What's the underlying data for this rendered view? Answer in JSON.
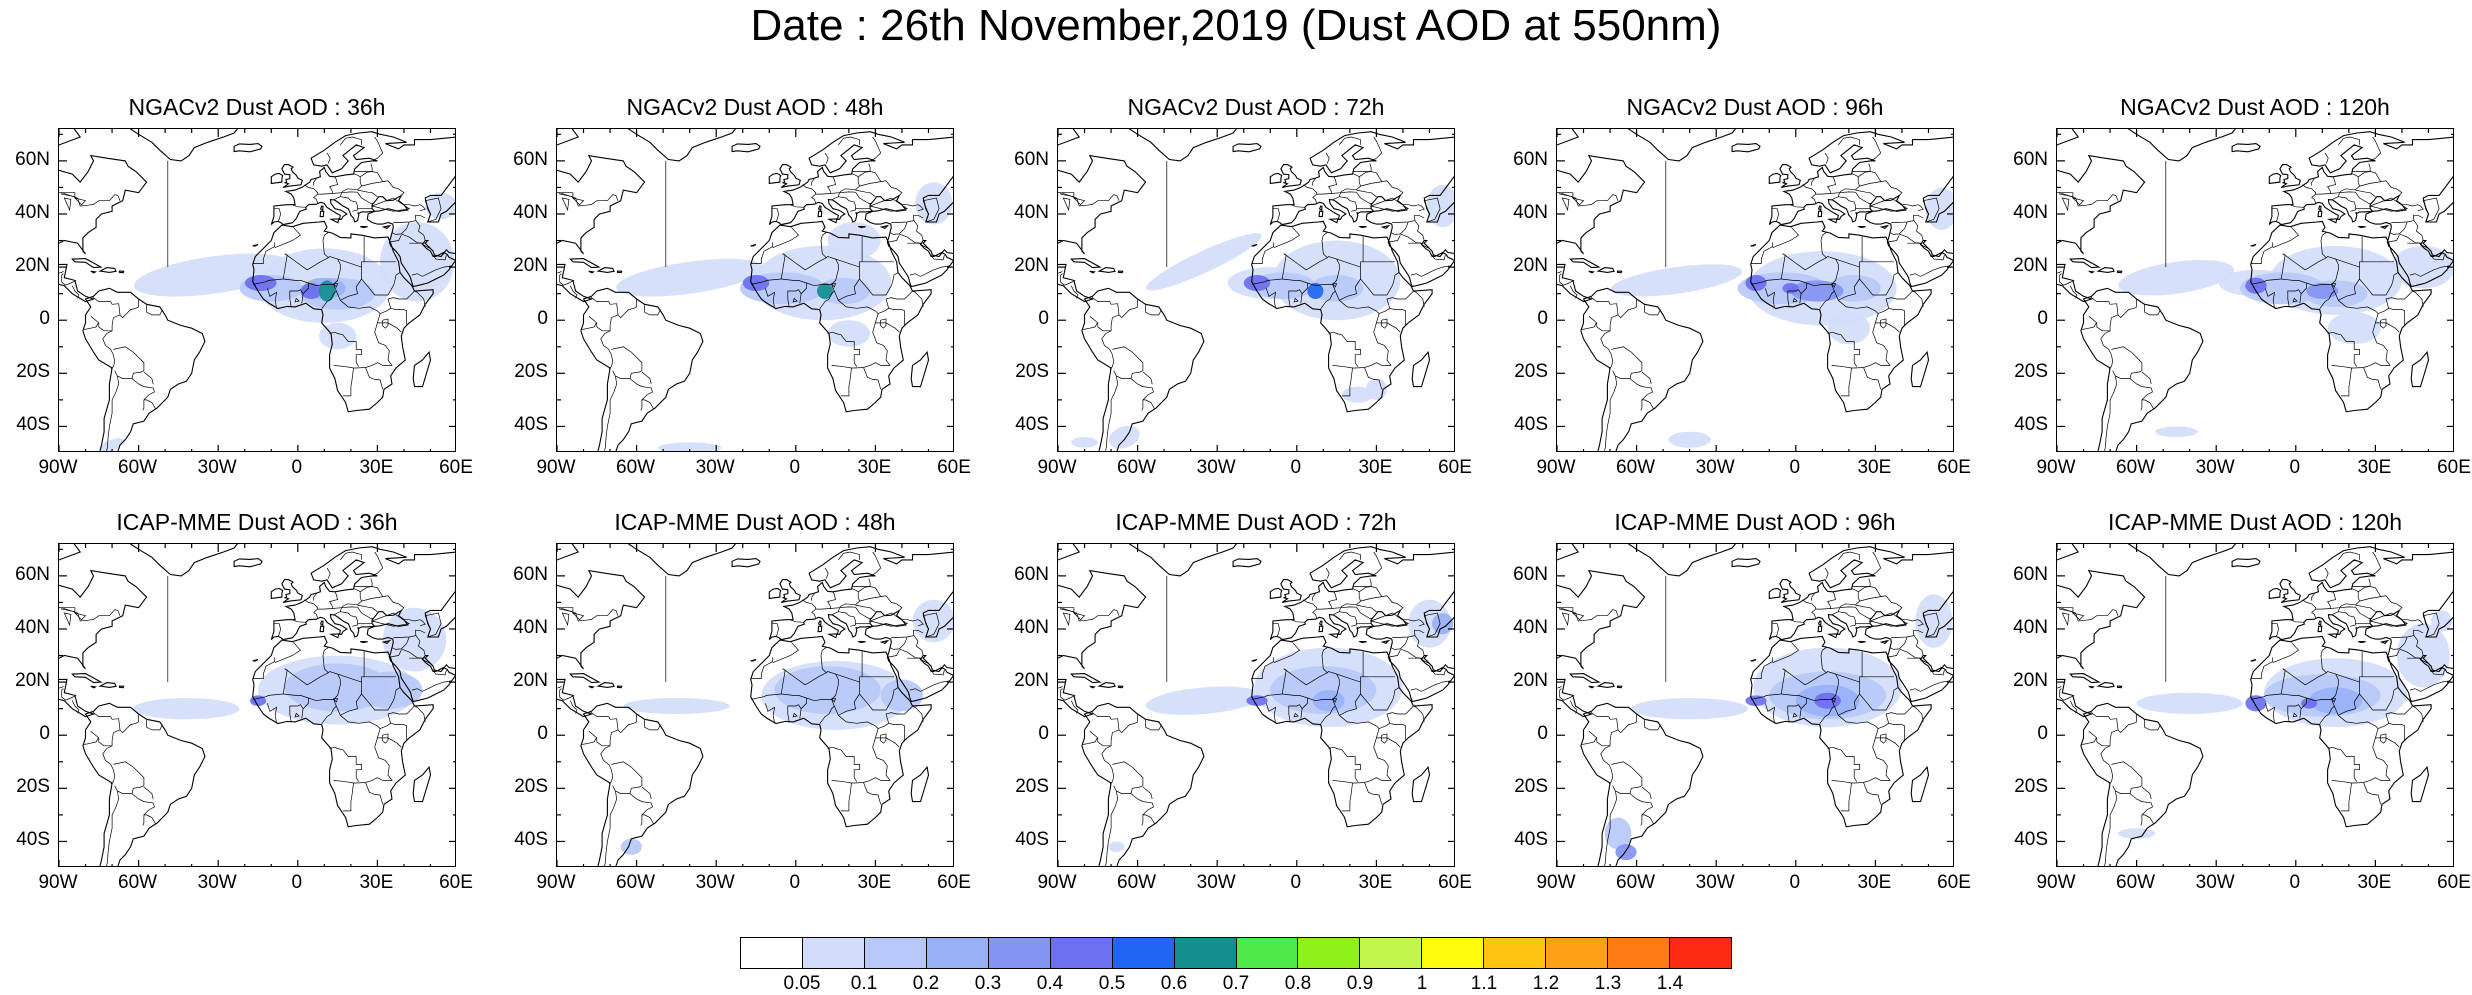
{
  "title": "Date : 26th November,2019 (Dust AOD at 550nm)",
  "panels": [
    {
      "title": "NGACv2 Dust AOD : 36h"
    },
    {
      "title": "NGACv2 Dust AOD : 48h"
    },
    {
      "title": "NGACv2 Dust AOD : 72h"
    },
    {
      "title": "NGACv2 Dust AOD : 96h"
    },
    {
      "title": "NGACv2 Dust AOD : 120h"
    },
    {
      "title": "ICAP-MME Dust AOD : 36h"
    },
    {
      "title": "ICAP-MME Dust AOD : 48h"
    },
    {
      "title": "ICAP-MME Dust AOD : 72h"
    },
    {
      "title": "ICAP-MME Dust AOD : 96h"
    },
    {
      "title": "ICAP-MME Dust AOD : 120h"
    }
  ],
  "lat_labels": [
    "60N",
    "40N",
    "20N",
    "0",
    "20S",
    "40S"
  ],
  "lon_labels": [
    "90W",
    "60W",
    "30W",
    "0",
    "30E",
    "60E"
  ],
  "colorbar": {
    "colors": [
      "#ffffff",
      "#d3ddfa",
      "#b7c8f8",
      "#98b1f6",
      "#8494f2",
      "#6c6fef",
      "#1f66f2",
      "#138f8f",
      "#4fe84a",
      "#8ef21a",
      "#c2f54d",
      "#fcfc0c",
      "#ffc412",
      "#ffa115",
      "#ff7b13",
      "#ff2a12"
    ],
    "labels": [
      "0.05",
      "0.1",
      "0.2",
      "0.3",
      "0.4",
      "0.5",
      "0.6",
      "0.7",
      "0.8",
      "0.9",
      "1",
      "1.1",
      "1.2",
      "1.3",
      "1.4"
    ]
  }
}
